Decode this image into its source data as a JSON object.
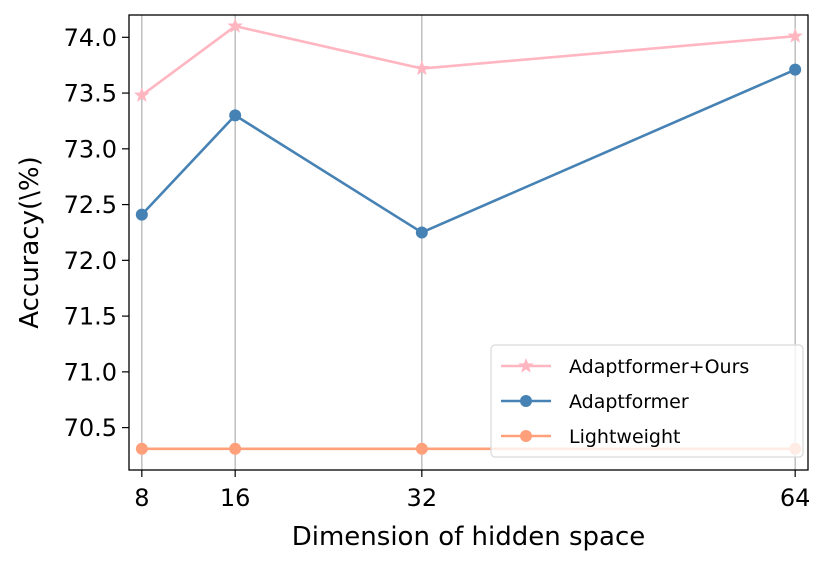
{
  "chart_data": {
    "type": "line",
    "title": "",
    "xlabel": "Dimension of hidden space",
    "ylabel": "Accuracy(\\%)",
    "x": [
      8,
      16,
      32,
      64
    ],
    "x_tick_labels": [
      "8",
      "16",
      "32",
      "64"
    ],
    "xlim": [
      6.9,
      65.1
    ],
    "ylim": [
      70.12,
      74.2
    ],
    "y_ticks": [
      70.5,
      71.0,
      71.5,
      72.0,
      72.5,
      73.0,
      73.5,
      74.0
    ],
    "y_tick_labels": [
      "70.5",
      "71.0",
      "71.5",
      "72.0",
      "72.5",
      "73.0",
      "73.5",
      "74.0"
    ],
    "grid": "vertical",
    "legend_position": "lower-right",
    "series": [
      {
        "name": "Adaptformer+Ours",
        "values": [
          73.48,
          74.1,
          73.72,
          74.01
        ],
        "color": "#ffb6c1",
        "marker": "star"
      },
      {
        "name": "Adaptformer",
        "values": [
          72.41,
          73.3,
          72.25,
          73.71
        ],
        "color": "#4682b4",
        "marker": "circle"
      },
      {
        "name": "Lightweight",
        "values": [
          70.31,
          70.31,
          70.31,
          70.31
        ],
        "color": "#ffa07a",
        "marker": "circle"
      }
    ]
  }
}
